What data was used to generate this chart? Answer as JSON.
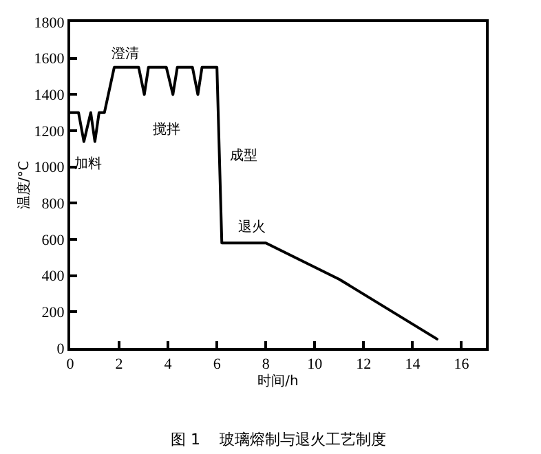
{
  "chart_data": {
    "type": "line",
    "xlabel": "时间/h",
    "ylabel": "温度/°C",
    "x": [
      0,
      0.34,
      0.56,
      0.84,
      1.01,
      1.18,
      1.4,
      1.8,
      2.8,
      3.03,
      3.2,
      3.93,
      4.2,
      4.38,
      5.0,
      5.22,
      5.39,
      6.0,
      6.2,
      8.0,
      11.0,
      15.0
    ],
    "series": [
      {
        "color": "#000000",
        "values": [
          1300,
          1300,
          1140,
          1300,
          1140,
          1300,
          1300,
          1550,
          1550,
          1400,
          1550,
          1550,
          1400,
          1550,
          1550,
          1400,
          1550,
          1550,
          580,
          580,
          380,
          50
        ]
      }
    ],
    "xlim": [
      0,
      17
    ],
    "xticks": [
      0,
      2,
      4,
      6,
      8,
      10,
      12,
      14,
      16
    ],
    "ylim": [
      0,
      1800
    ],
    "yticks": [
      0,
      200,
      400,
      600,
      800,
      1000,
      1200,
      1400,
      1600,
      1800
    ],
    "grid": false,
    "marker": "none",
    "line_style": "solid",
    "annotations": [
      "加料",
      "澄清",
      "搅拌",
      "成型",
      "退火",
      "图 1    玻璃熔制与退火工艺制度"
    ]
  }
}
